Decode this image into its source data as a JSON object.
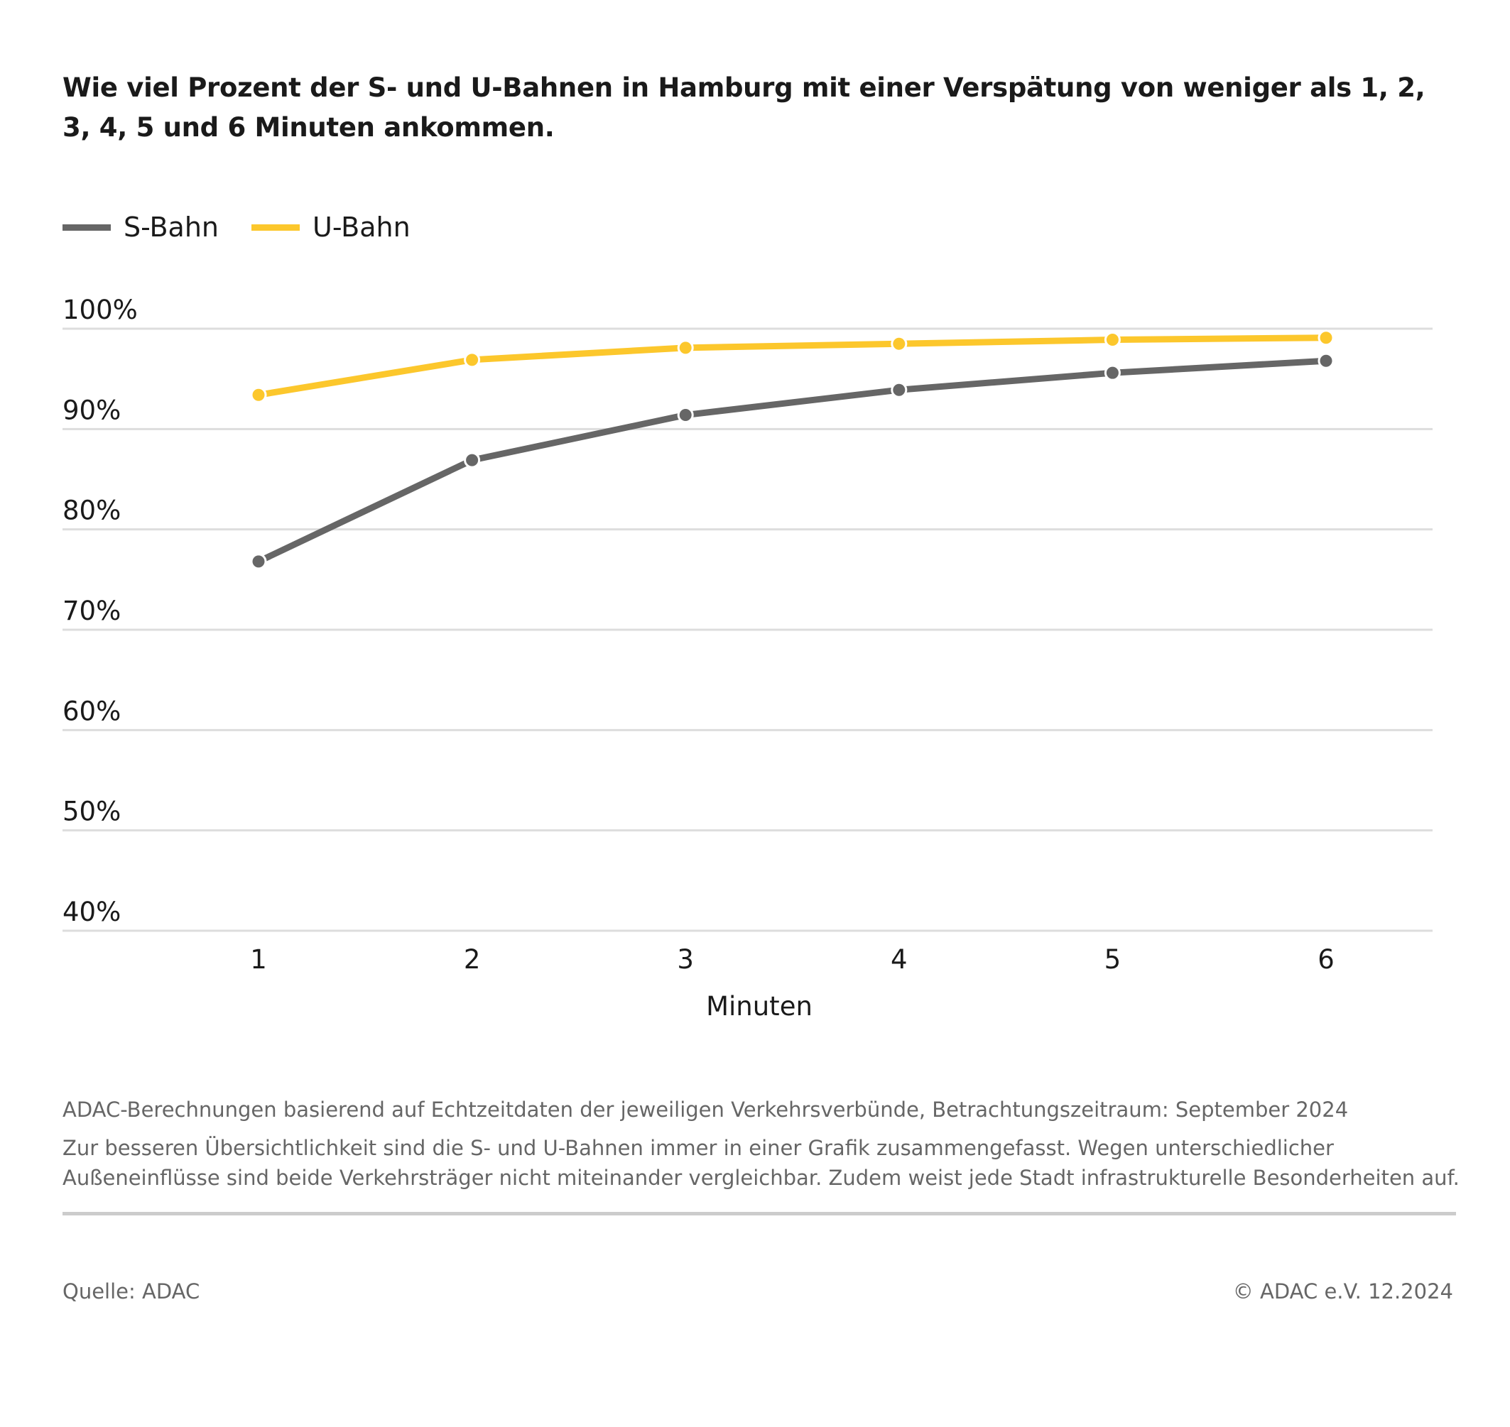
{
  "colors": {
    "s_bahn": "#666666",
    "u_bahn": "#fcc72c",
    "grid": "#dddddd"
  },
  "chart_data": {
    "type": "line",
    "title": "Wie viel Prozent der S- und U-Bahnen in Hamburg mit einer Verspätung von weniger als 1, 2, 3, 4, 5 und 6 Minuten ankommen.",
    "xlabel": "Minuten",
    "ylabel": "",
    "x": [
      1,
      2,
      3,
      4,
      5,
      6
    ],
    "x_tick_labels": [
      "1",
      "2",
      "3",
      "4",
      "5",
      "6"
    ],
    "ylim": [
      40,
      100
    ],
    "y_ticks": [
      40,
      50,
      60,
      70,
      80,
      90,
      100
    ],
    "y_tick_labels": [
      "40%",
      "50%",
      "60%",
      "70%",
      "80%",
      "90%",
      "100%"
    ],
    "grid": true,
    "legend_position": "top-left",
    "series": [
      {
        "name": "S-Bahn",
        "color": "#666666",
        "values": [
          76.8,
          86.9,
          91.4,
          93.9,
          95.6,
          96.8
        ]
      },
      {
        "name": "U-Bahn",
        "color": "#fcc72c",
        "values": [
          93.4,
          96.9,
          98.1,
          98.5,
          98.9,
          99.1
        ]
      }
    ]
  },
  "footer": {
    "note1": "ADAC-Berechnungen basierend auf Echtzeitdaten der jeweiligen Verkehrsverbünde, Betrachtungszeitraum: September 2024",
    "note2": "Zur besseren Übersichtlichkeit sind die S- und U-Bahnen immer in einer Grafik zusammengefasst. Wegen unterschiedlicher",
    "note3": "Außeneinflüsse sind beide Verkehrsträger nicht miteinander vergleichbar. Zudem weist jede Stadt infrastrukturelle Besonderheiten auf.",
    "source": "Quelle: ADAC",
    "copyright": "© ADAC e.V. 12.2024"
  }
}
